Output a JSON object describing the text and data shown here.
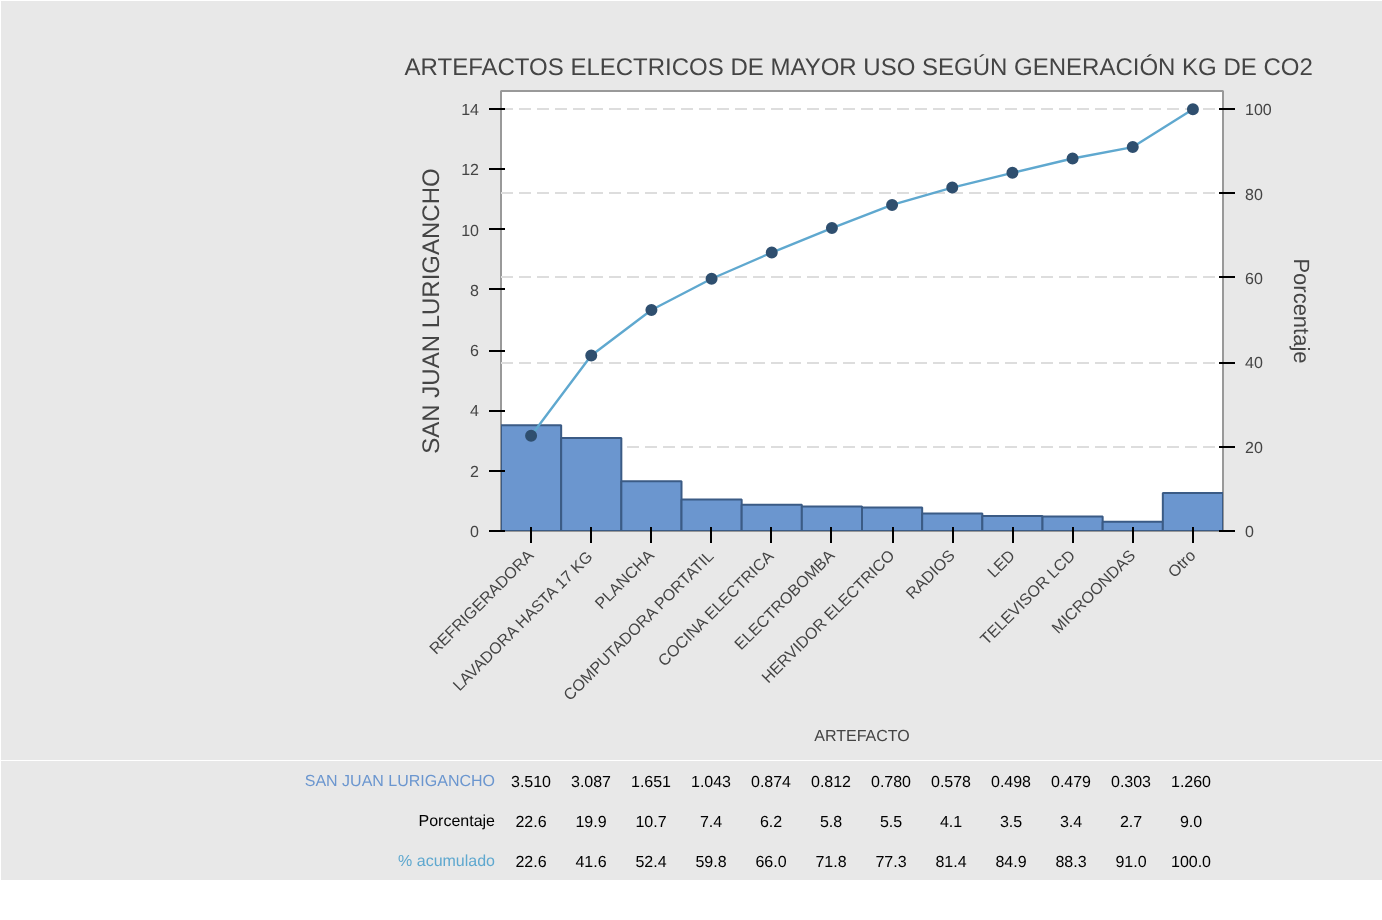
{
  "chart_data": {
    "type": "bar",
    "title": "ARTEFACTOS ELECTRICOS DE MAYOR USO SEGÚN GENERACIÓN  KG DE CO2",
    "xlabel": "ARTEFACTO",
    "ylabel": "SAN JUAN LURIGANCHO",
    "y2label": "Porcentaje",
    "categories": [
      "REFRIGERADORA",
      "LAVADORA HASTA 17 KG",
      "PLANCHA",
      "COMPUTADORA PORTATIL",
      "COCINA ELECTRICA",
      "ELECTROBOMBA",
      "HERVIDOR ELECTRICO",
      "RADIOS",
      "LED",
      "TELEVISOR LCD",
      "MICROONDAS",
      "Otro"
    ],
    "series": [
      {
        "name": "SAN JUAN LURIGANCHO",
        "color": "#6b96cf",
        "values": [
          3.51,
          3.087,
          1.651,
          1.043,
          0.874,
          0.812,
          0.78,
          0.578,
          0.498,
          0.479,
          0.303,
          1.26
        ],
        "value_labels": [
          "3.510",
          "3.087",
          "1.651",
          "1.043",
          "0.874",
          "0.812",
          "0.780",
          "0.578",
          "0.498",
          "0.479",
          "0.303",
          "1.260"
        ]
      },
      {
        "name": "% acumulado",
        "type": "line",
        "axis": "y2",
        "color": "#5fa8cf",
        "values": [
          22.6,
          41.6,
          52.4,
          59.8,
          66.0,
          71.8,
          77.3,
          81.4,
          84.9,
          88.3,
          91.0,
          100.0
        ],
        "value_labels": [
          "22.6",
          "41.6",
          "52.4",
          "59.8",
          "66.0",
          "71.8",
          "77.3",
          "81.4",
          "84.9",
          "88.3",
          "91.0",
          "100.0"
        ]
      }
    ],
    "annotations": [
      "Porcentaje",
      "22.6",
      "19.9",
      "10.7",
      "7.4",
      "6.2",
      "5.8",
      "5.5",
      "4.1",
      "3.5",
      "3.4",
      "2.7",
      "9.0"
    ],
    "ylim": [
      0,
      14.6
    ],
    "yticks": [
      0,
      2,
      4,
      6,
      8,
      10,
      12,
      14
    ],
    "y2lim": [
      0,
      104.3
    ],
    "y2ticks": [
      0,
      20,
      40,
      60,
      80,
      100
    ],
    "grid": "y2",
    "marker": "circle"
  }
}
